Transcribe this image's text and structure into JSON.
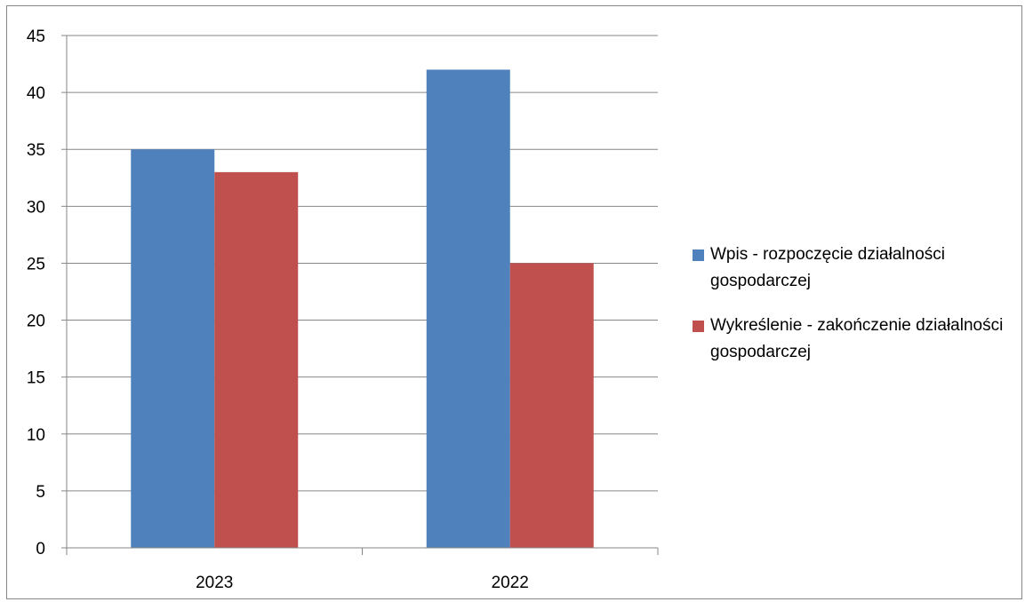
{
  "chart_data": {
    "type": "bar",
    "categories": [
      "2023",
      "2022"
    ],
    "series": [
      {
        "name": "Wpis - rozpoczęcie działalności gospodarczej",
        "values": [
          35,
          42
        ],
        "color": "#4F81BD"
      },
      {
        "name": "Wykreślenie - zakończenie działalności gospodarczej",
        "values": [
          33,
          25
        ],
        "color": "#C0504D"
      }
    ],
    "title": "",
    "xlabel": "",
    "ylabel": "",
    "ylim": [
      0,
      45
    ],
    "yticks": [
      0,
      5,
      10,
      15,
      20,
      25,
      30,
      35,
      40,
      45
    ],
    "grid": true,
    "legend_position": "right"
  }
}
